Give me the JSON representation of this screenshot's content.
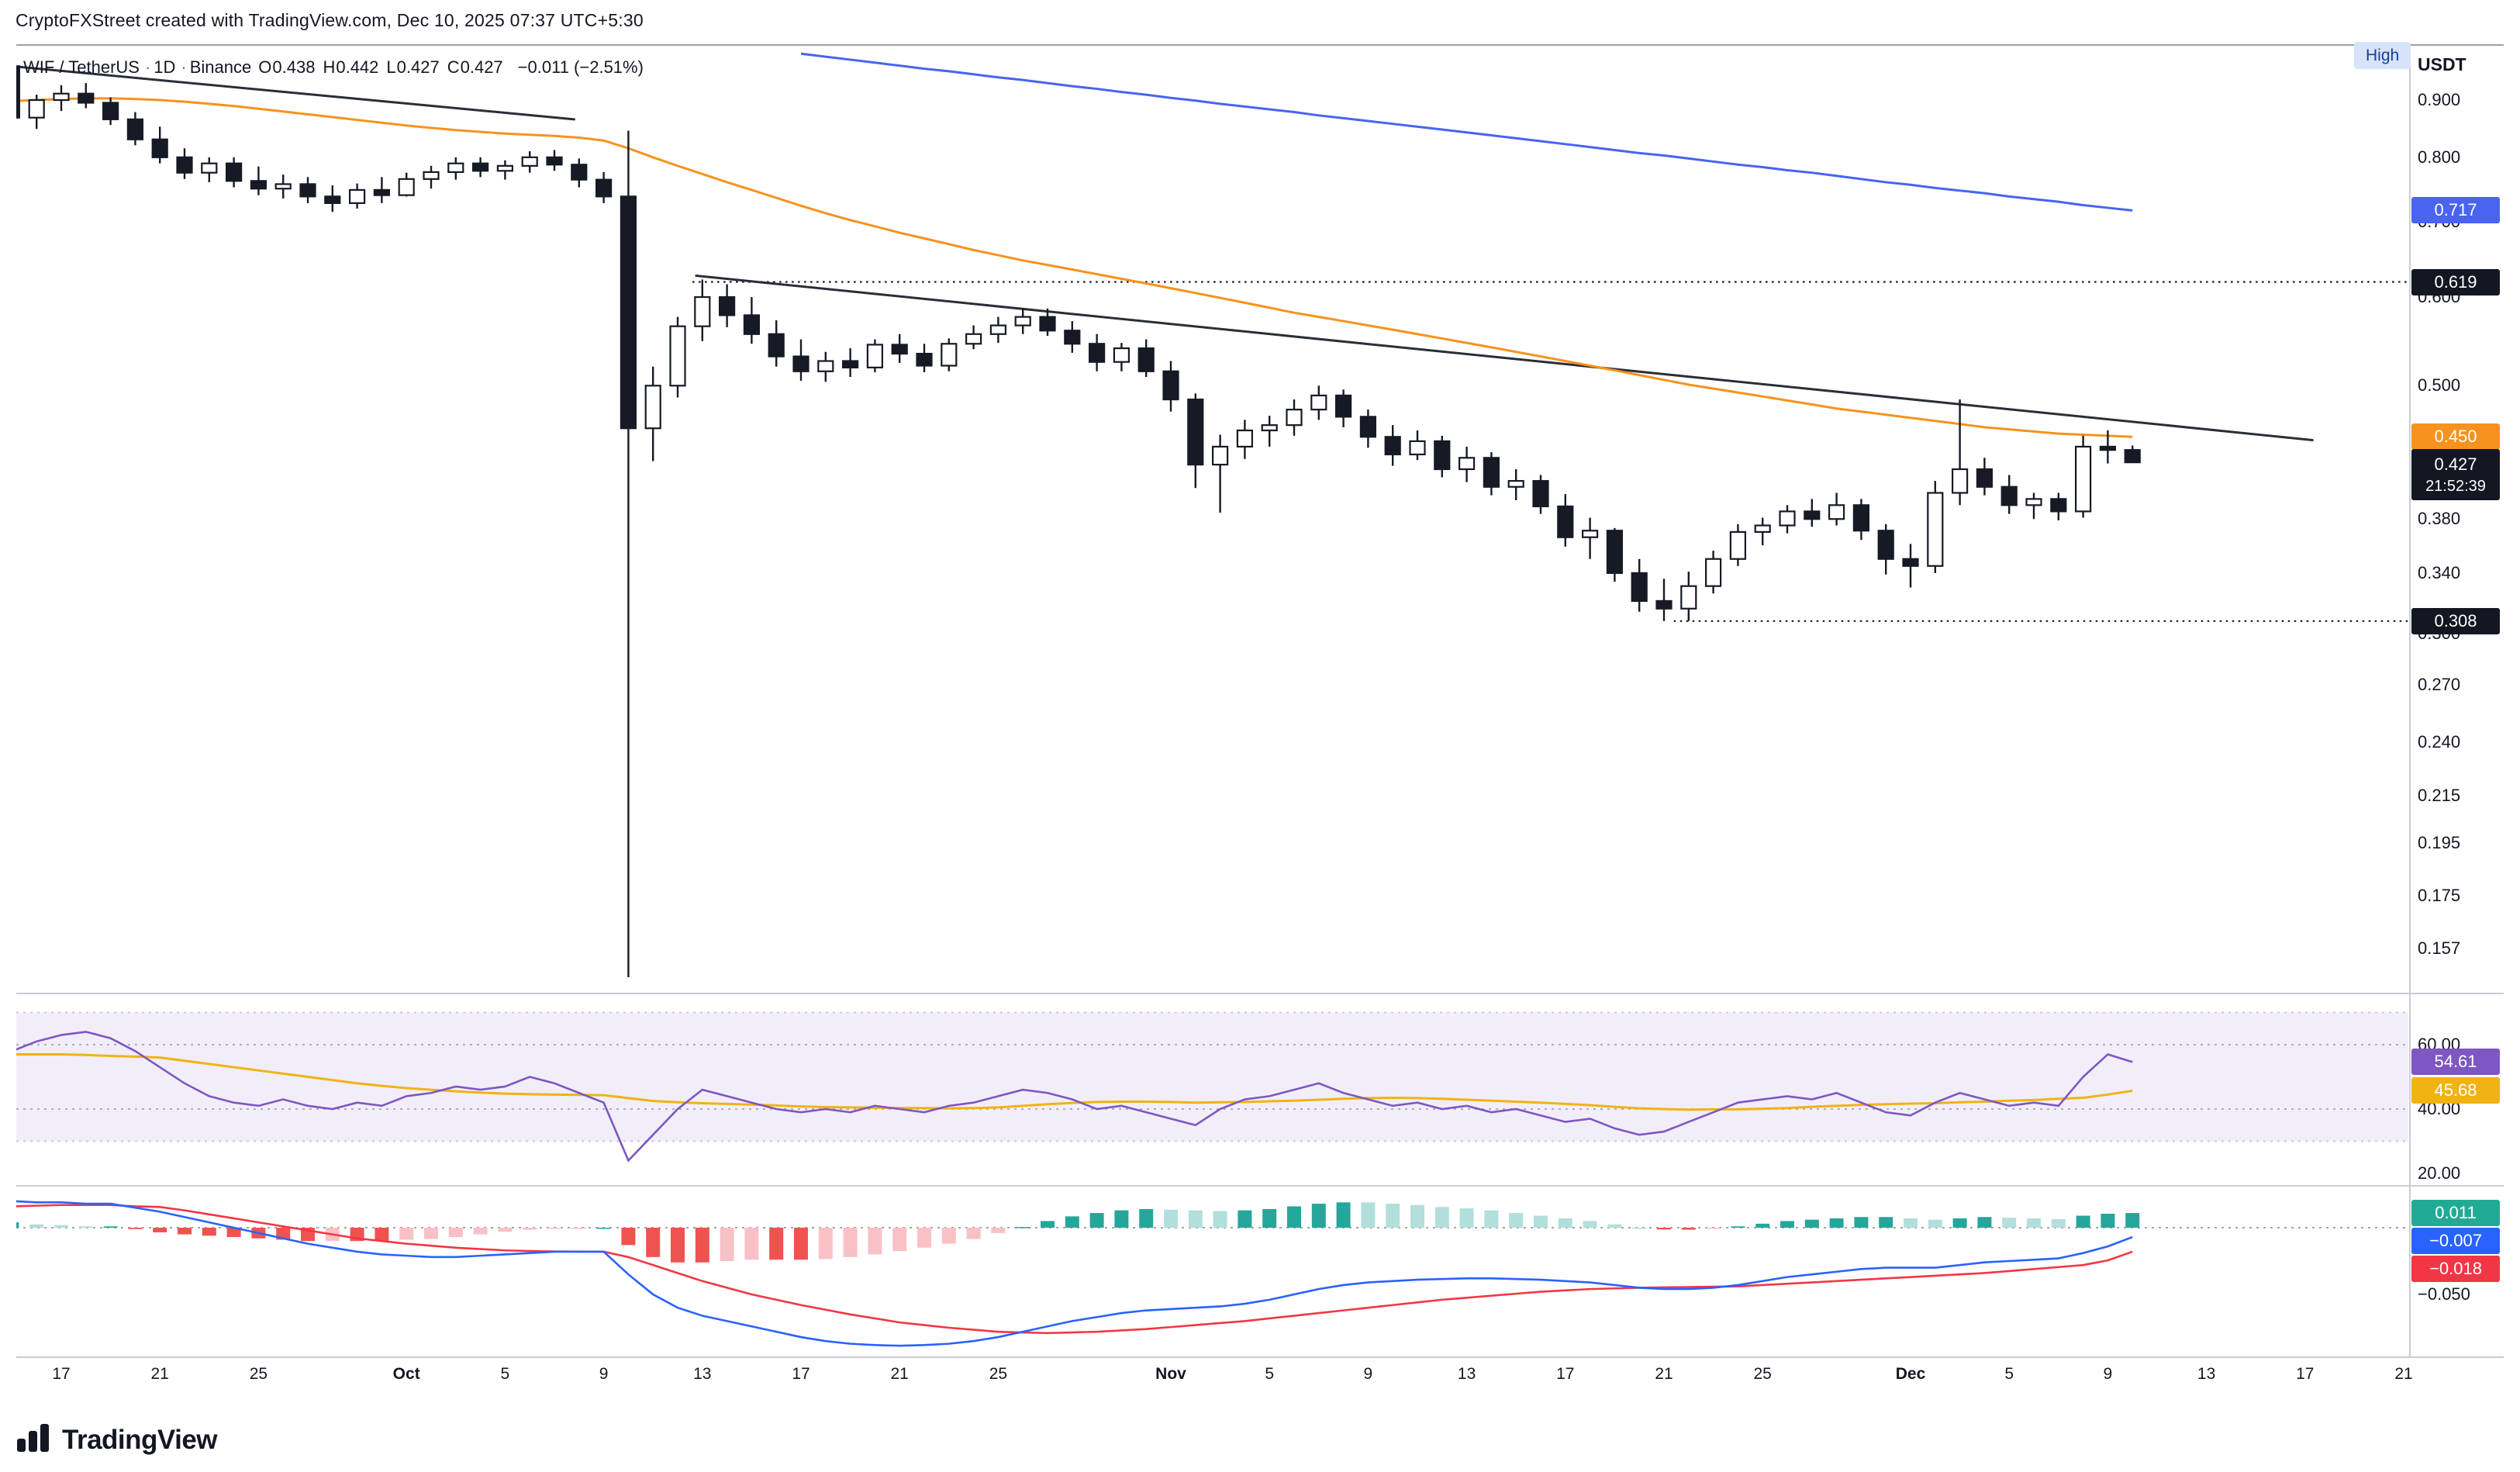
{
  "attribution": "CryptoFXStreet created with TradingView.com, Dec 10, 2025 07:37 UTC+5:30",
  "header": {
    "symbol": "WIF / TetherUS",
    "separator": "·",
    "interval": "1D",
    "exchange": "Binance",
    "ohlc": [
      {
        "label": "O",
        "value": "0.438"
      },
      {
        "label": "H",
        "value": "0.442"
      },
      {
        "label": "L",
        "value": "0.427"
      },
      {
        "label": "C",
        "value": "0.427"
      }
    ],
    "change": "−0.011 (−2.51%)",
    "high_badge": "High",
    "axis_currency": "USDT"
  },
  "footer": {
    "brand": "TradingView"
  },
  "colors": {
    "blue": "#4a63f0",
    "black": "#131722",
    "orange": "#f7921e",
    "purple": "#7e57c2",
    "yellow": "#f0b313",
    "teal": "#22ab94",
    "red": "#f23645",
    "macdblue": "#2962ff"
  },
  "price_axis": {
    "ticks": [
      {
        "text": "0.900",
        "p": 0.9
      },
      {
        "text": "0.800",
        "p": 0.8
      },
      {
        "text": "0.700",
        "p": 0.7
      },
      {
        "text": "0.600",
        "p": 0.6
      },
      {
        "text": "0.500",
        "p": 0.5
      },
      {
        "text": "0.380",
        "p": 0.38
      },
      {
        "text": "0.340",
        "p": 0.34
      },
      {
        "text": "0.300",
        "p": 0.3
      },
      {
        "text": "0.270",
        "p": 0.27
      },
      {
        "text": "0.240",
        "p": 0.24
      },
      {
        "text": "0.215",
        "p": 0.215
      },
      {
        "text": "0.195",
        "p": 0.195
      },
      {
        "text": "0.175",
        "p": 0.175
      },
      {
        "text": "0.157",
        "p": 0.157
      }
    ],
    "badges": [
      {
        "text": "0.717",
        "p": 0.717,
        "color": "blue"
      },
      {
        "text": "0.619",
        "p": 0.619,
        "color": "black"
      },
      {
        "text": "0.450",
        "p": 0.45,
        "color": "orange"
      },
      {
        "text": "0.308",
        "p": 0.308,
        "color": "black"
      }
    ],
    "current": {
      "text": "0.427",
      "p": 0.427,
      "countdown": "21:52:39"
    }
  },
  "rsi_axis": {
    "ticks": [
      {
        "text": "60.00",
        "v": 60
      },
      {
        "text": "40.00",
        "v": 40
      },
      {
        "text": "20.00",
        "v": 20
      }
    ],
    "badges": [
      {
        "text": "54.61",
        "v": 54.61,
        "color": "purple"
      },
      {
        "text": "45.68",
        "v": 45.68,
        "color": "yellow"
      }
    ]
  },
  "macd_axis": {
    "ticks": [
      {
        "text": "−0.050",
        "v": -0.05
      }
    ],
    "badges": [
      {
        "text": "0.011",
        "v": 0.011,
        "color": "teal"
      },
      {
        "text": "−0.007",
        "v": -0.007,
        "color": "macdblue"
      },
      {
        "text": "−0.018",
        "v": -0.018,
        "color": "red"
      }
    ]
  },
  "time_axis": {
    "labels": [
      {
        "text": "17",
        "day": 2
      },
      {
        "text": "21",
        "day": 6
      },
      {
        "text": "25",
        "day": 10
      },
      {
        "text": "Oct",
        "day": 16,
        "month": true
      },
      {
        "text": "5",
        "day": 20
      },
      {
        "text": "9",
        "day": 24
      },
      {
        "text": "13",
        "day": 28
      },
      {
        "text": "17",
        "day": 32
      },
      {
        "text": "21",
        "day": 36
      },
      {
        "text": "25",
        "day": 40
      },
      {
        "text": "Nov",
        "day": 47,
        "month": true
      },
      {
        "text": "5",
        "day": 51
      },
      {
        "text": "9",
        "day": 55
      },
      {
        "text": "13",
        "day": 59
      },
      {
        "text": "17",
        "day": 63
      },
      {
        "text": "21",
        "day": 67
      },
      {
        "text": "25",
        "day": 71
      },
      {
        "text": "Dec",
        "day": 77,
        "month": true
      },
      {
        "text": "5",
        "day": 81
      },
      {
        "text": "9",
        "day": 85
      },
      {
        "text": "13",
        "day": 89
      },
      {
        "text": "17",
        "day": 93
      },
      {
        "text": "21",
        "day": 97
      }
    ]
  },
  "chart_data": {
    "type": "candlestick",
    "title": "WIF / TetherUS · 1D · Binance",
    "price_scale": "log",
    "last_candle_date_label": "Dec 10, 2025",
    "visible_price_range": [
      0.145,
      0.99
    ],
    "ohlc": [
      [
        0.965,
        0.99,
        0.85,
        0.868
      ],
      [
        0.868,
        0.91,
        0.848,
        0.9
      ],
      [
        0.9,
        0.928,
        0.88,
        0.912
      ],
      [
        0.912,
        0.932,
        0.885,
        0.895
      ],
      [
        0.895,
        0.905,
        0.855,
        0.865
      ],
      [
        0.865,
        0.878,
        0.82,
        0.83
      ],
      [
        0.83,
        0.852,
        0.79,
        0.8
      ],
      [
        0.8,
        0.815,
        0.765,
        0.775
      ],
      [
        0.775,
        0.8,
        0.76,
        0.79
      ],
      [
        0.79,
        0.8,
        0.752,
        0.762
      ],
      [
        0.762,
        0.785,
        0.74,
        0.75
      ],
      [
        0.75,
        0.772,
        0.735,
        0.757
      ],
      [
        0.757,
        0.768,
        0.728,
        0.738
      ],
      [
        0.738,
        0.755,
        0.715,
        0.728
      ],
      [
        0.728,
        0.758,
        0.72,
        0.748
      ],
      [
        0.748,
        0.768,
        0.728,
        0.74
      ],
      [
        0.74,
        0.775,
        0.738,
        0.765
      ],
      [
        0.765,
        0.786,
        0.75,
        0.776
      ],
      [
        0.776,
        0.8,
        0.764,
        0.79
      ],
      [
        0.79,
        0.8,
        0.768,
        0.778
      ],
      [
        0.778,
        0.795,
        0.764,
        0.786
      ],
      [
        0.786,
        0.81,
        0.775,
        0.8
      ],
      [
        0.8,
        0.812,
        0.778,
        0.788
      ],
      [
        0.788,
        0.798,
        0.752,
        0.764
      ],
      [
        0.764,
        0.776,
        0.728,
        0.738
      ],
      [
        0.738,
        0.845,
        0.148,
        0.458
      ],
      [
        0.458,
        0.52,
        0.428,
        0.5
      ],
      [
        0.5,
        0.576,
        0.488,
        0.565
      ],
      [
        0.565,
        0.622,
        0.548,
        0.6
      ],
      [
        0.6,
        0.616,
        0.564,
        0.578
      ],
      [
        0.578,
        0.6,
        0.545,
        0.556
      ],
      [
        0.556,
        0.572,
        0.52,
        0.531
      ],
      [
        0.531,
        0.55,
        0.505,
        0.515
      ],
      [
        0.515,
        0.536,
        0.504,
        0.526
      ],
      [
        0.526,
        0.54,
        0.509,
        0.519
      ],
      [
        0.519,
        0.55,
        0.514,
        0.544
      ],
      [
        0.544,
        0.556,
        0.524,
        0.534
      ],
      [
        0.534,
        0.545,
        0.514,
        0.521
      ],
      [
        0.521,
        0.551,
        0.515,
        0.545
      ],
      [
        0.545,
        0.566,
        0.539,
        0.556
      ],
      [
        0.556,
        0.576,
        0.546,
        0.566
      ],
      [
        0.566,
        0.586,
        0.556,
        0.576
      ],
      [
        0.576,
        0.586,
        0.554,
        0.56
      ],
      [
        0.56,
        0.571,
        0.535,
        0.545
      ],
      [
        0.545,
        0.556,
        0.515,
        0.525
      ],
      [
        0.525,
        0.546,
        0.515,
        0.54
      ],
      [
        0.54,
        0.55,
        0.509,
        0.515
      ],
      [
        0.515,
        0.526,
        0.474,
        0.486
      ],
      [
        0.486,
        0.492,
        0.405,
        0.425
      ],
      [
        0.425,
        0.452,
        0.385,
        0.441
      ],
      [
        0.441,
        0.466,
        0.43,
        0.456
      ],
      [
        0.456,
        0.47,
        0.441,
        0.461
      ],
      [
        0.461,
        0.486,
        0.451,
        0.476
      ],
      [
        0.476,
        0.5,
        0.466,
        0.49
      ],
      [
        0.49,
        0.496,
        0.459,
        0.469
      ],
      [
        0.469,
        0.476,
        0.44,
        0.45
      ],
      [
        0.45,
        0.461,
        0.424,
        0.434
      ],
      [
        0.434,
        0.456,
        0.429,
        0.446
      ],
      [
        0.446,
        0.451,
        0.414,
        0.421
      ],
      [
        0.421,
        0.441,
        0.41,
        0.431
      ],
      [
        0.431,
        0.436,
        0.399,
        0.406
      ],
      [
        0.406,
        0.421,
        0.395,
        0.411
      ],
      [
        0.411,
        0.416,
        0.384,
        0.39
      ],
      [
        0.39,
        0.4,
        0.359,
        0.366
      ],
      [
        0.366,
        0.381,
        0.35,
        0.371
      ],
      [
        0.371,
        0.373,
        0.334,
        0.34
      ],
      [
        0.34,
        0.35,
        0.314,
        0.321
      ],
      [
        0.321,
        0.336,
        0.308,
        0.316
      ],
      [
        0.316,
        0.341,
        0.308,
        0.331
      ],
      [
        0.331,
        0.356,
        0.326,
        0.35
      ],
      [
        0.35,
        0.376,
        0.345,
        0.37
      ],
      [
        0.37,
        0.381,
        0.36,
        0.375
      ],
      [
        0.375,
        0.391,
        0.369,
        0.386
      ],
      [
        0.386,
        0.396,
        0.374,
        0.38
      ],
      [
        0.38,
        0.401,
        0.375,
        0.391
      ],
      [
        0.391,
        0.396,
        0.364,
        0.371
      ],
      [
        0.371,
        0.376,
        0.339,
        0.35
      ],
      [
        0.35,
        0.361,
        0.33,
        0.345
      ],
      [
        0.345,
        0.411,
        0.34,
        0.401
      ],
      [
        0.401,
        0.486,
        0.391,
        0.421
      ],
      [
        0.421,
        0.431,
        0.399,
        0.406
      ],
      [
        0.406,
        0.416,
        0.384,
        0.391
      ],
      [
        0.391,
        0.401,
        0.38,
        0.396
      ],
      [
        0.396,
        0.401,
        0.379,
        0.386
      ],
      [
        0.386,
        0.451,
        0.381,
        0.441
      ],
      [
        0.441,
        0.456,
        0.426,
        0.438
      ],
      [
        0.438,
        0.442,
        0.427,
        0.427
      ]
    ],
    "ma_orange": [
      0.898,
      0.9,
      0.902,
      0.903,
      0.903,
      0.902,
      0.9,
      0.897,
      0.893,
      0.889,
      0.884,
      0.879,
      0.874,
      0.869,
      0.864,
      0.859,
      0.854,
      0.85,
      0.846,
      0.843,
      0.84,
      0.838,
      0.836,
      0.833,
      0.828,
      0.815,
      0.8,
      0.786,
      0.773,
      0.76,
      0.748,
      0.736,
      0.724,
      0.713,
      0.703,
      0.694,
      0.685,
      0.677,
      0.669,
      0.661,
      0.654,
      0.647,
      0.641,
      0.635,
      0.629,
      0.623,
      0.617,
      0.611,
      0.605,
      0.599,
      0.593,
      0.587,
      0.581,
      0.576,
      0.571,
      0.566,
      0.561,
      0.556,
      0.551,
      0.546,
      0.541,
      0.536,
      0.531,
      0.526,
      0.521,
      0.516,
      0.511,
      0.506,
      0.501,
      0.497,
      0.493,
      0.489,
      0.485,
      0.481,
      0.477,
      0.474,
      0.471,
      0.468,
      0.465,
      0.462,
      0.459,
      0.457,
      0.455,
      0.453,
      0.452,
      0.451,
      0.45
    ],
    "ma_blue": {
      "start_index": 32,
      "values": [
        0.99,
        0.984,
        0.978,
        0.972,
        0.966,
        0.96,
        0.955,
        0.949,
        0.943,
        0.938,
        0.932,
        0.926,
        0.921,
        0.915,
        0.91,
        0.904,
        0.899,
        0.893,
        0.888,
        0.883,
        0.878,
        0.872,
        0.867,
        0.862,
        0.857,
        0.852,
        0.847,
        0.842,
        0.837,
        0.832,
        0.827,
        0.822,
        0.817,
        0.812,
        0.807,
        0.803,
        0.798,
        0.793,
        0.788,
        0.784,
        0.779,
        0.775,
        0.77,
        0.765,
        0.76,
        0.756,
        0.751,
        0.747,
        0.743,
        0.738,
        0.734,
        0.73,
        0.725,
        0.721,
        0.717
      ]
    },
    "levels": [
      {
        "price": 0.619,
        "from_index": 27.6
      },
      {
        "price": 0.308,
        "from_index": 67.4
      }
    ],
    "trendlines": [
      {
        "i1": 0,
        "p1": 0.965,
        "i2": 22.8,
        "p2": 0.865
      },
      {
        "i1": 27.75,
        "p1": 0.627,
        "i2": 93.3,
        "p2": 0.447
      }
    ],
    "rsi": {
      "band": [
        30,
        70
      ],
      "guide_lines": [
        60,
        40
      ],
      "values": [
        58,
        61,
        63,
        64,
        62,
        58,
        53,
        48,
        44,
        42,
        41,
        43,
        41,
        40,
        42,
        41,
        44,
        45,
        47,
        46,
        47,
        50,
        48,
        45,
        42,
        24,
        32,
        40,
        46,
        44,
        42,
        40,
        39,
        40,
        39,
        41,
        40,
        39,
        41,
        42,
        44,
        46,
        45,
        43,
        40,
        41,
        39,
        37,
        35,
        40,
        43,
        44,
        46,
        48,
        45,
        43,
        41,
        42,
        40,
        41,
        39,
        40,
        38,
        36,
        37,
        34,
        32,
        33,
        36,
        39,
        42,
        43,
        44,
        43,
        45,
        42,
        39,
        38,
        42,
        45,
        43,
        41,
        42,
        41,
        50,
        57,
        54.61
      ],
      "ma": [
        57,
        57,
        57,
        56.8,
        56.5,
        56.3,
        56,
        55,
        54,
        53,
        52,
        51,
        50,
        49,
        48,
        47.2,
        46.5,
        46,
        45.5,
        45.1,
        44.8,
        44.6,
        44.5,
        44.4,
        44.3,
        43.4,
        42.5,
        42.1,
        41.8,
        41.6,
        41.4,
        41.1,
        40.8,
        40.6,
        40.5,
        40.4,
        40.3,
        40.3,
        40.2,
        40.3,
        40.5,
        41,
        41.5,
        41.9,
        42.2,
        42.3,
        42.3,
        42.2,
        42,
        42.1,
        42.2,
        42.4,
        42.6,
        42.9,
        43.2,
        43.4,
        43.5,
        43.4,
        43.2,
        42.9,
        42.6,
        42.3,
        42,
        41.6,
        41.2,
        40.7,
        40.2,
        40,
        39.8,
        39.9,
        39.9,
        40.1,
        40.3,
        40.7,
        41,
        41.3,
        41.5,
        41.7,
        41.8,
        42.1,
        42.3,
        42.6,
        42.8,
        43.2,
        43.5,
        44.5,
        45.68
      ]
    },
    "macd": {
      "macd": [
        0.02,
        0.019,
        0.019,
        0.018,
        0.018,
        0.015,
        0.012,
        0.008,
        0.004,
        0.0,
        -0.004,
        -0.008,
        -0.012,
        -0.015,
        -0.018,
        -0.02,
        -0.021,
        -0.022,
        -0.022,
        -0.021,
        -0.02,
        -0.019,
        -0.018,
        -0.018,
        -0.018,
        -0.035,
        -0.05,
        -0.06,
        -0.066,
        -0.07,
        -0.074,
        -0.078,
        -0.082,
        -0.085,
        -0.087,
        -0.088,
        -0.0885,
        -0.088,
        -0.087,
        -0.085,
        -0.082,
        -0.078,
        -0.074,
        -0.07,
        -0.067,
        -0.064,
        -0.062,
        -0.061,
        -0.06,
        -0.059,
        -0.057,
        -0.054,
        -0.05,
        -0.046,
        -0.043,
        -0.041,
        -0.04,
        -0.039,
        -0.0385,
        -0.038,
        -0.038,
        -0.0385,
        -0.039,
        -0.04,
        -0.041,
        -0.043,
        -0.045,
        -0.046,
        -0.046,
        -0.045,
        -0.043,
        -0.04,
        -0.037,
        -0.035,
        -0.033,
        -0.031,
        -0.03,
        -0.03,
        -0.03,
        -0.028,
        -0.026,
        -0.025,
        -0.024,
        -0.023,
        -0.019,
        -0.014,
        -0.007
      ],
      "signal": [
        0.016,
        0.0165,
        0.017,
        0.017,
        0.017,
        0.016,
        0.0155,
        0.013,
        0.01,
        0.007,
        0.004,
        0.001,
        -0.002,
        -0.005,
        -0.008,
        -0.01,
        -0.012,
        -0.0135,
        -0.015,
        -0.016,
        -0.017,
        -0.0175,
        -0.0178,
        -0.0179,
        -0.018,
        -0.022,
        -0.028,
        -0.034,
        -0.04,
        -0.045,
        -0.05,
        -0.054,
        -0.058,
        -0.0615,
        -0.065,
        -0.068,
        -0.071,
        -0.073,
        -0.075,
        -0.0765,
        -0.078,
        -0.0785,
        -0.079,
        -0.0785,
        -0.078,
        -0.077,
        -0.076,
        -0.0745,
        -0.073,
        -0.0715,
        -0.07,
        -0.068,
        -0.066,
        -0.064,
        -0.062,
        -0.06,
        -0.058,
        -0.056,
        -0.054,
        -0.0525,
        -0.051,
        -0.0495,
        -0.048,
        -0.047,
        -0.046,
        -0.0455,
        -0.045,
        -0.0447,
        -0.0445,
        -0.0442,
        -0.044,
        -0.043,
        -0.042,
        -0.041,
        -0.04,
        -0.039,
        -0.038,
        -0.037,
        -0.036,
        -0.035,
        -0.034,
        -0.0325,
        -0.031,
        -0.0295,
        -0.028,
        -0.0245,
        -0.018
      ]
    }
  }
}
